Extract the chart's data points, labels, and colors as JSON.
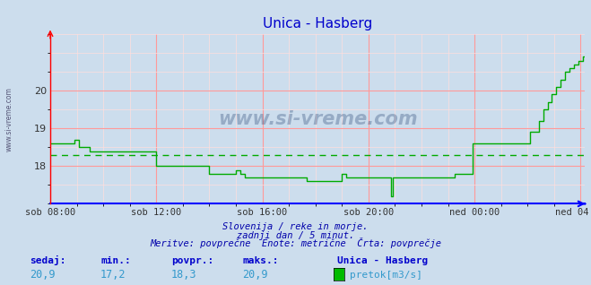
{
  "title": "Unica - Hasberg",
  "bg_color": "#ccdded",
  "plot_bg_color": "#ccdded",
  "line_color": "#00aa00",
  "avg_line_color": "#00aa00",
  "avg_value": 18.3,
  "ylim": [
    17.0,
    21.5
  ],
  "yticks": [
    18,
    19,
    20
  ],
  "xtick_positions": [
    0,
    48,
    96,
    144,
    192,
    240
  ],
  "xlabel_ticks": [
    "sob 08:00",
    "sob 12:00",
    "sob 16:00",
    "sob 20:00",
    "ned 00:00",
    "ned 04:00"
  ],
  "grid_color_major": "#ff9999",
  "grid_color_minor": "#ffdddd",
  "footer_line1": "Slovenija / reke in morje.",
  "footer_line2": "zadnji dan / 5 minut.",
  "footer_line3": "Meritve: povprečne  Enote: metrične  Črta: povprečje",
  "legend_title": "Unica - Hasberg",
  "legend_label": "pretok[m3/s]",
  "stat_labels": [
    "sedaj:",
    "min.:",
    "povpr.:",
    "maks.:"
  ],
  "stat_values": [
    "20,9",
    "17,2",
    "18,3",
    "20,9"
  ],
  "watermark": "www.si-vreme.com",
  "left_label": "www.si-vreme.com",
  "values": [
    18.6,
    18.6,
    18.6,
    18.6,
    18.6,
    18.6,
    18.6,
    18.6,
    18.6,
    18.6,
    18.6,
    18.7,
    18.7,
    18.5,
    18.5,
    18.5,
    18.5,
    18.5,
    18.4,
    18.4,
    18.4,
    18.4,
    18.4,
    18.4,
    18.4,
    18.4,
    18.4,
    18.4,
    18.4,
    18.4,
    18.4,
    18.4,
    18.4,
    18.4,
    18.4,
    18.4,
    18.4,
    18.4,
    18.4,
    18.4,
    18.4,
    18.4,
    18.4,
    18.4,
    18.4,
    18.4,
    18.4,
    18.4,
    18.0,
    18.0,
    18.0,
    18.0,
    18.0,
    18.0,
    18.0,
    18.0,
    18.0,
    18.0,
    18.0,
    18.0,
    18.0,
    18.0,
    18.0,
    18.0,
    18.0,
    18.0,
    18.0,
    18.0,
    18.0,
    18.0,
    18.0,
    18.0,
    17.8,
    17.8,
    17.8,
    17.8,
    17.8,
    17.8,
    17.8,
    17.8,
    17.8,
    17.8,
    17.8,
    17.8,
    17.9,
    17.9,
    17.8,
    17.8,
    17.7,
    17.7,
    17.7,
    17.7,
    17.7,
    17.7,
    17.7,
    17.7,
    17.7,
    17.7,
    17.7,
    17.7,
    17.7,
    17.7,
    17.7,
    17.7,
    17.7,
    17.7,
    17.7,
    17.7,
    17.7,
    17.7,
    17.7,
    17.7,
    17.7,
    17.7,
    17.7,
    17.7,
    17.6,
    17.6,
    17.6,
    17.6,
    17.6,
    17.6,
    17.6,
    17.6,
    17.6,
    17.6,
    17.6,
    17.6,
    17.6,
    17.6,
    17.6,
    17.6,
    17.8,
    17.8,
    17.7,
    17.7,
    17.7,
    17.7,
    17.7,
    17.7,
    17.7,
    17.7,
    17.7,
    17.7,
    17.7,
    17.7,
    17.7,
    17.7,
    17.7,
    17.7,
    17.7,
    17.7,
    17.7,
    17.7,
    17.2,
    17.7,
    17.7,
    17.7,
    17.7,
    17.7,
    17.7,
    17.7,
    17.7,
    17.7,
    17.7,
    17.7,
    17.7,
    17.7,
    17.7,
    17.7,
    17.7,
    17.7,
    17.7,
    17.7,
    17.7,
    17.7,
    17.7,
    17.7,
    17.7,
    17.7,
    17.7,
    17.7,
    17.7,
    17.8,
    17.8,
    17.8,
    17.8,
    17.8,
    17.8,
    17.8,
    17.8,
    18.6,
    18.6,
    18.6,
    18.6,
    18.6,
    18.6,
    18.6,
    18.6,
    18.6,
    18.6,
    18.6,
    18.6,
    18.6,
    18.6,
    18.6,
    18.6,
    18.6,
    18.6,
    18.6,
    18.6,
    18.6,
    18.6,
    18.6,
    18.6,
    18.6,
    18.6,
    18.9,
    18.9,
    18.9,
    18.9,
    19.2,
    19.2,
    19.5,
    19.5,
    19.7,
    19.7,
    19.9,
    19.9,
    20.1,
    20.1,
    20.3,
    20.3,
    20.5,
    20.5,
    20.6,
    20.6,
    20.7,
    20.7,
    20.8,
    20.8,
    20.9,
    20.9
  ]
}
